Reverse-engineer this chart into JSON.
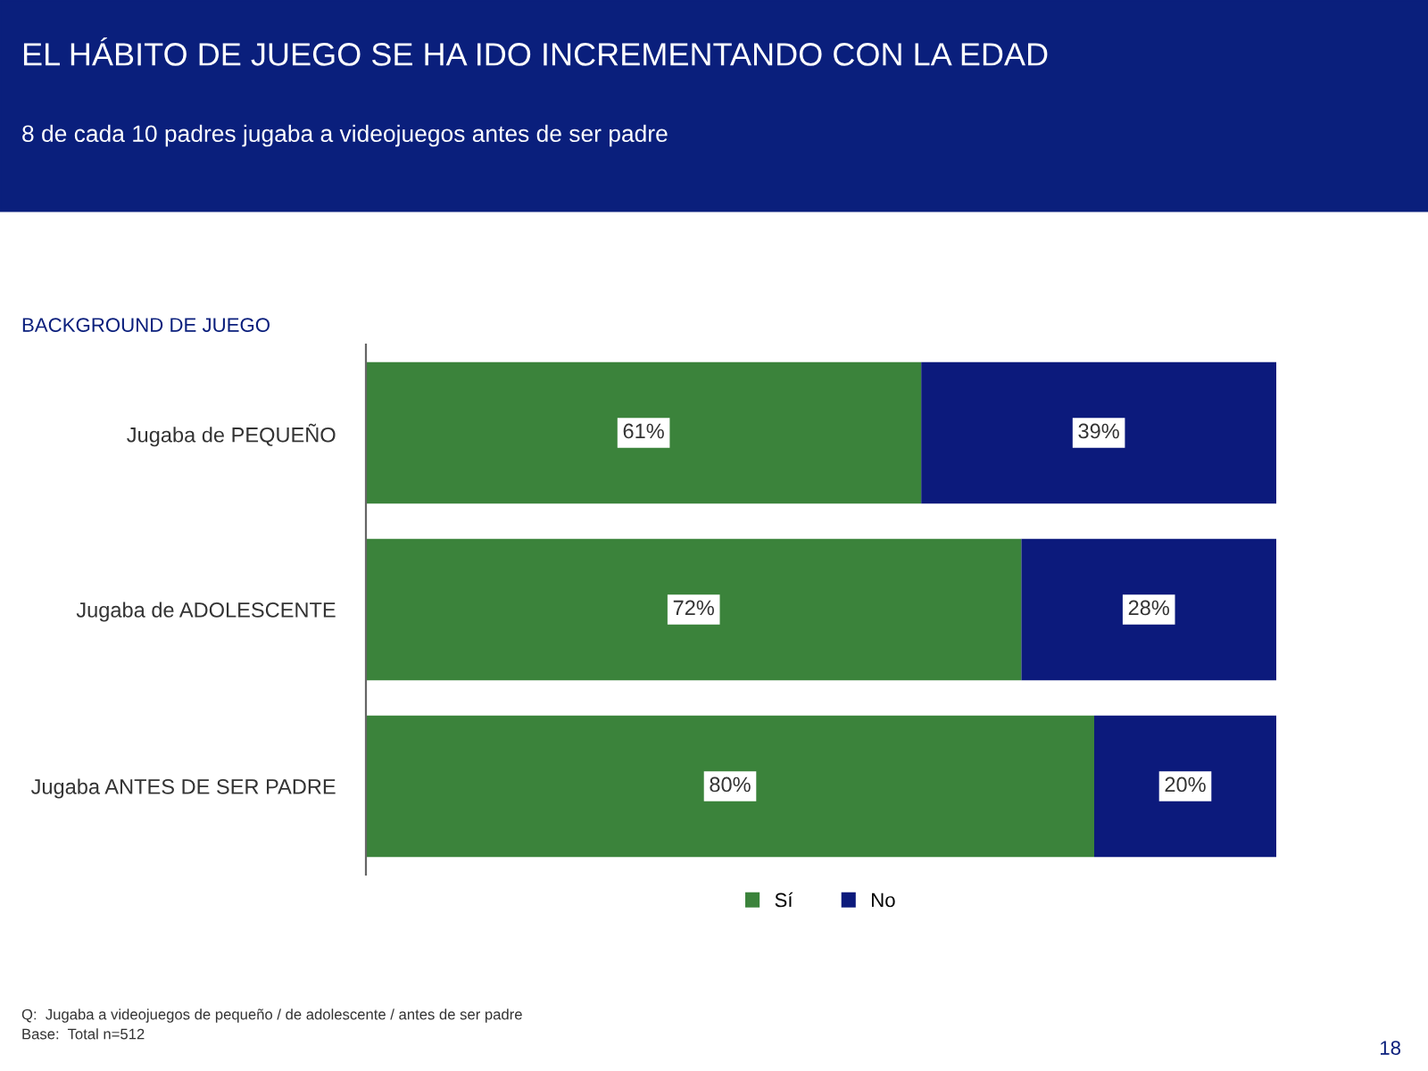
{
  "chart_data": {
    "type": "bar",
    "orientation": "horizontal",
    "stacked": true,
    "title": "EL HÁBITO DE JUEGO SE HA IDO INCREMENTANDO CON LA EDAD",
    "subtitle": "8 de cada 10 padres jugaba a videojuegos antes de ser padre",
    "categories": [
      "Jugaba de PEQUEÑO",
      "Jugaba de ADOLESCENTE",
      "Jugaba ANTES DE SER PADRE"
    ],
    "series": [
      {
        "name": "Sí",
        "color": "#3b833b",
        "values": [
          61,
          72,
          80
        ],
        "value_labels": [
          "61%",
          "72%",
          "80%"
        ]
      },
      {
        "name": "No",
        "color": "#0c1a7c",
        "values": [
          39,
          28,
          20
        ],
        "value_labels": [
          "39%",
          "28%",
          "20%"
        ]
      }
    ],
    "legend": "bottom",
    "grid": false,
    "tick_labels": "y",
    "annotations": [
      "BACKGROUND DE JUEGO",
      "Q:  Jugaba a videojuegos de pequeño / de adolescente / antes de ser padre",
      "Base:  Total n=512",
      "18"
    ]
  }
}
